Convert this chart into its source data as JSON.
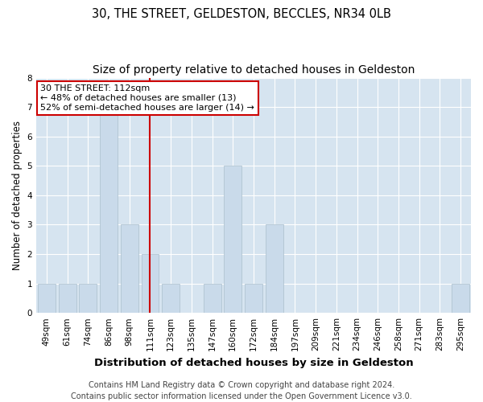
{
  "title1": "30, THE STREET, GELDESTON, BECCLES, NR34 0LB",
  "title2": "Size of property relative to detached houses in Geldeston",
  "xlabel": "Distribution of detached houses by size in Geldeston",
  "ylabel": "Number of detached properties",
  "categories": [
    "49sqm",
    "61sqm",
    "74sqm",
    "86sqm",
    "98sqm",
    "111sqm",
    "123sqm",
    "135sqm",
    "147sqm",
    "160sqm",
    "172sqm",
    "184sqm",
    "197sqm",
    "209sqm",
    "221sqm",
    "234sqm",
    "246sqm",
    "258sqm",
    "271sqm",
    "283sqm",
    "295sqm"
  ],
  "values": [
    1,
    1,
    1,
    7,
    3,
    2,
    1,
    0,
    1,
    5,
    1,
    3,
    0,
    0,
    0,
    0,
    0,
    0,
    0,
    0,
    1
  ],
  "bar_color": "#c9daea",
  "bar_edge_color": "#aabfcc",
  "highlight_index": 5,
  "highlight_line_color": "#cc0000",
  "annotation_text": "30 THE STREET: 112sqm\n← 48% of detached houses are smaller (13)\n52% of semi-detached houses are larger (14) →",
  "annotation_box_color": "#ffffff",
  "annotation_box_edge": "#cc0000",
  "ylim": [
    0,
    8
  ],
  "yticks": [
    0,
    1,
    2,
    3,
    4,
    5,
    6,
    7,
    8
  ],
  "footer": "Contains HM Land Registry data © Crown copyright and database right 2024.\nContains public sector information licensed under the Open Government Licence v3.0.",
  "fig_bg_color": "#ffffff",
  "plot_bg_color": "#d6e4f0",
  "title1_fontsize": 10.5,
  "title2_fontsize": 10,
  "xlabel_fontsize": 9.5,
  "ylabel_fontsize": 8.5,
  "tick_fontsize": 7.5,
  "footer_fontsize": 7,
  "ann_fontsize": 8
}
